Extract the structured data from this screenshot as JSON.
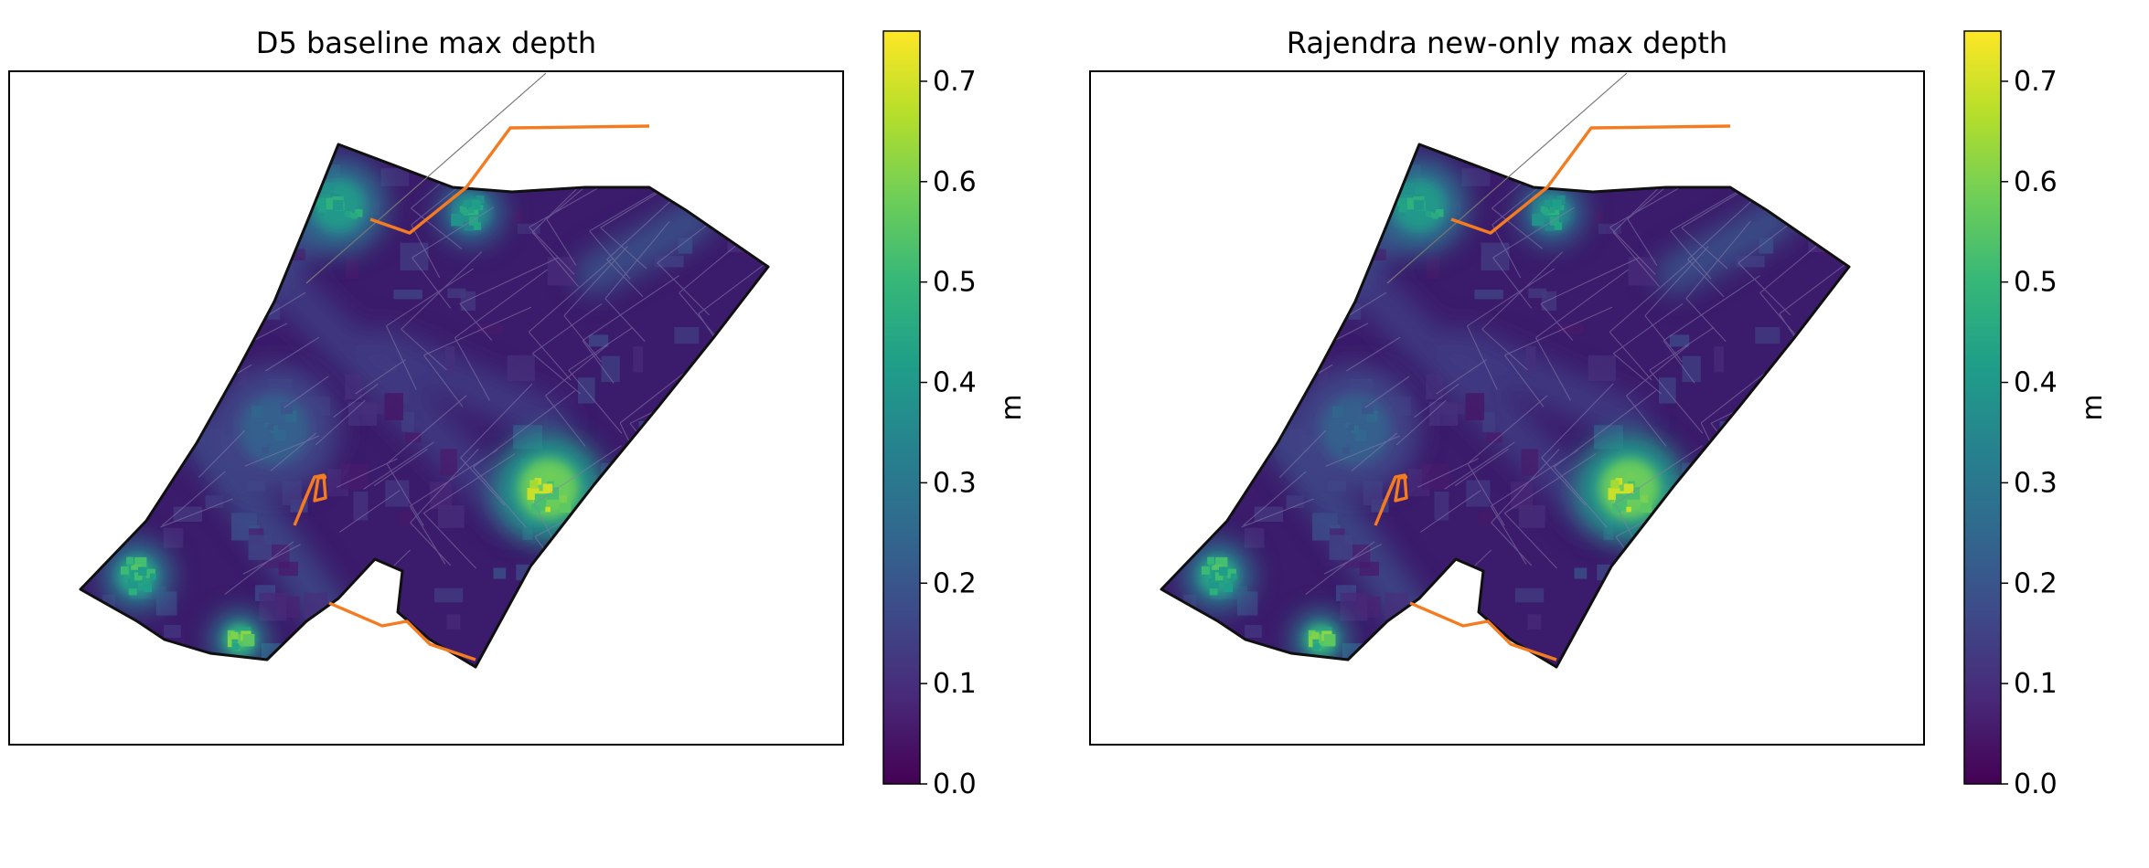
{
  "chart_data": [
    {
      "type": "heatmap",
      "title": "D5 baseline max depth",
      "colorbar": {
        "label": "m",
        "range": [
          0.0,
          0.75
        ],
        "ticks": [
          "0.0",
          "0.1",
          "0.2",
          "0.3",
          "0.4",
          "0.5",
          "0.6",
          "0.7"
        ],
        "tick_values": [
          0.0,
          0.1,
          0.2,
          0.3,
          0.4,
          0.5,
          0.6,
          0.7
        ],
        "colormap": "viridis"
      },
      "overlays": [
        "road-network",
        "drainage-lines"
      ],
      "hotspots": [
        {
          "area": "east-center",
          "value": 0.72
        },
        {
          "area": "north-west",
          "value": 0.5
        },
        {
          "area": "north-center",
          "value": 0.48
        },
        {
          "area": "south-west",
          "value": 0.55
        },
        {
          "area": "south-center",
          "value": 0.62
        },
        {
          "area": "west-center",
          "value": 0.28
        }
      ]
    },
    {
      "type": "heatmap",
      "title": "Rajendra new-only max depth",
      "colorbar": {
        "label": "m",
        "range": [
          0.0,
          0.75
        ],
        "ticks": [
          "0.0",
          "0.1",
          "0.2",
          "0.3",
          "0.4",
          "0.5",
          "0.6",
          "0.7"
        ],
        "tick_values": [
          0.0,
          0.1,
          0.2,
          0.3,
          0.4,
          0.5,
          0.6,
          0.7
        ],
        "colormap": "viridis"
      },
      "overlays": [
        "road-network",
        "drainage-lines"
      ],
      "hotspots": [
        {
          "area": "east-center",
          "value": 0.72
        },
        {
          "area": "north-west",
          "value": 0.5
        },
        {
          "area": "north-center",
          "value": 0.48
        },
        {
          "area": "south-west",
          "value": 0.55
        },
        {
          "area": "south-center",
          "value": 0.62
        },
        {
          "area": "west-center",
          "value": 0.28
        }
      ]
    }
  ],
  "colors": {
    "viridis": [
      "#440154",
      "#482878",
      "#3e4989",
      "#31688e",
      "#26828e",
      "#1f9e89",
      "#35b779",
      "#6ece58",
      "#b5de2b",
      "#fde725"
    ],
    "base_fill": "#3b1b6b",
    "drain_line": "#f47b20",
    "road_line": "#8a7fb0",
    "frame": "#000000"
  }
}
